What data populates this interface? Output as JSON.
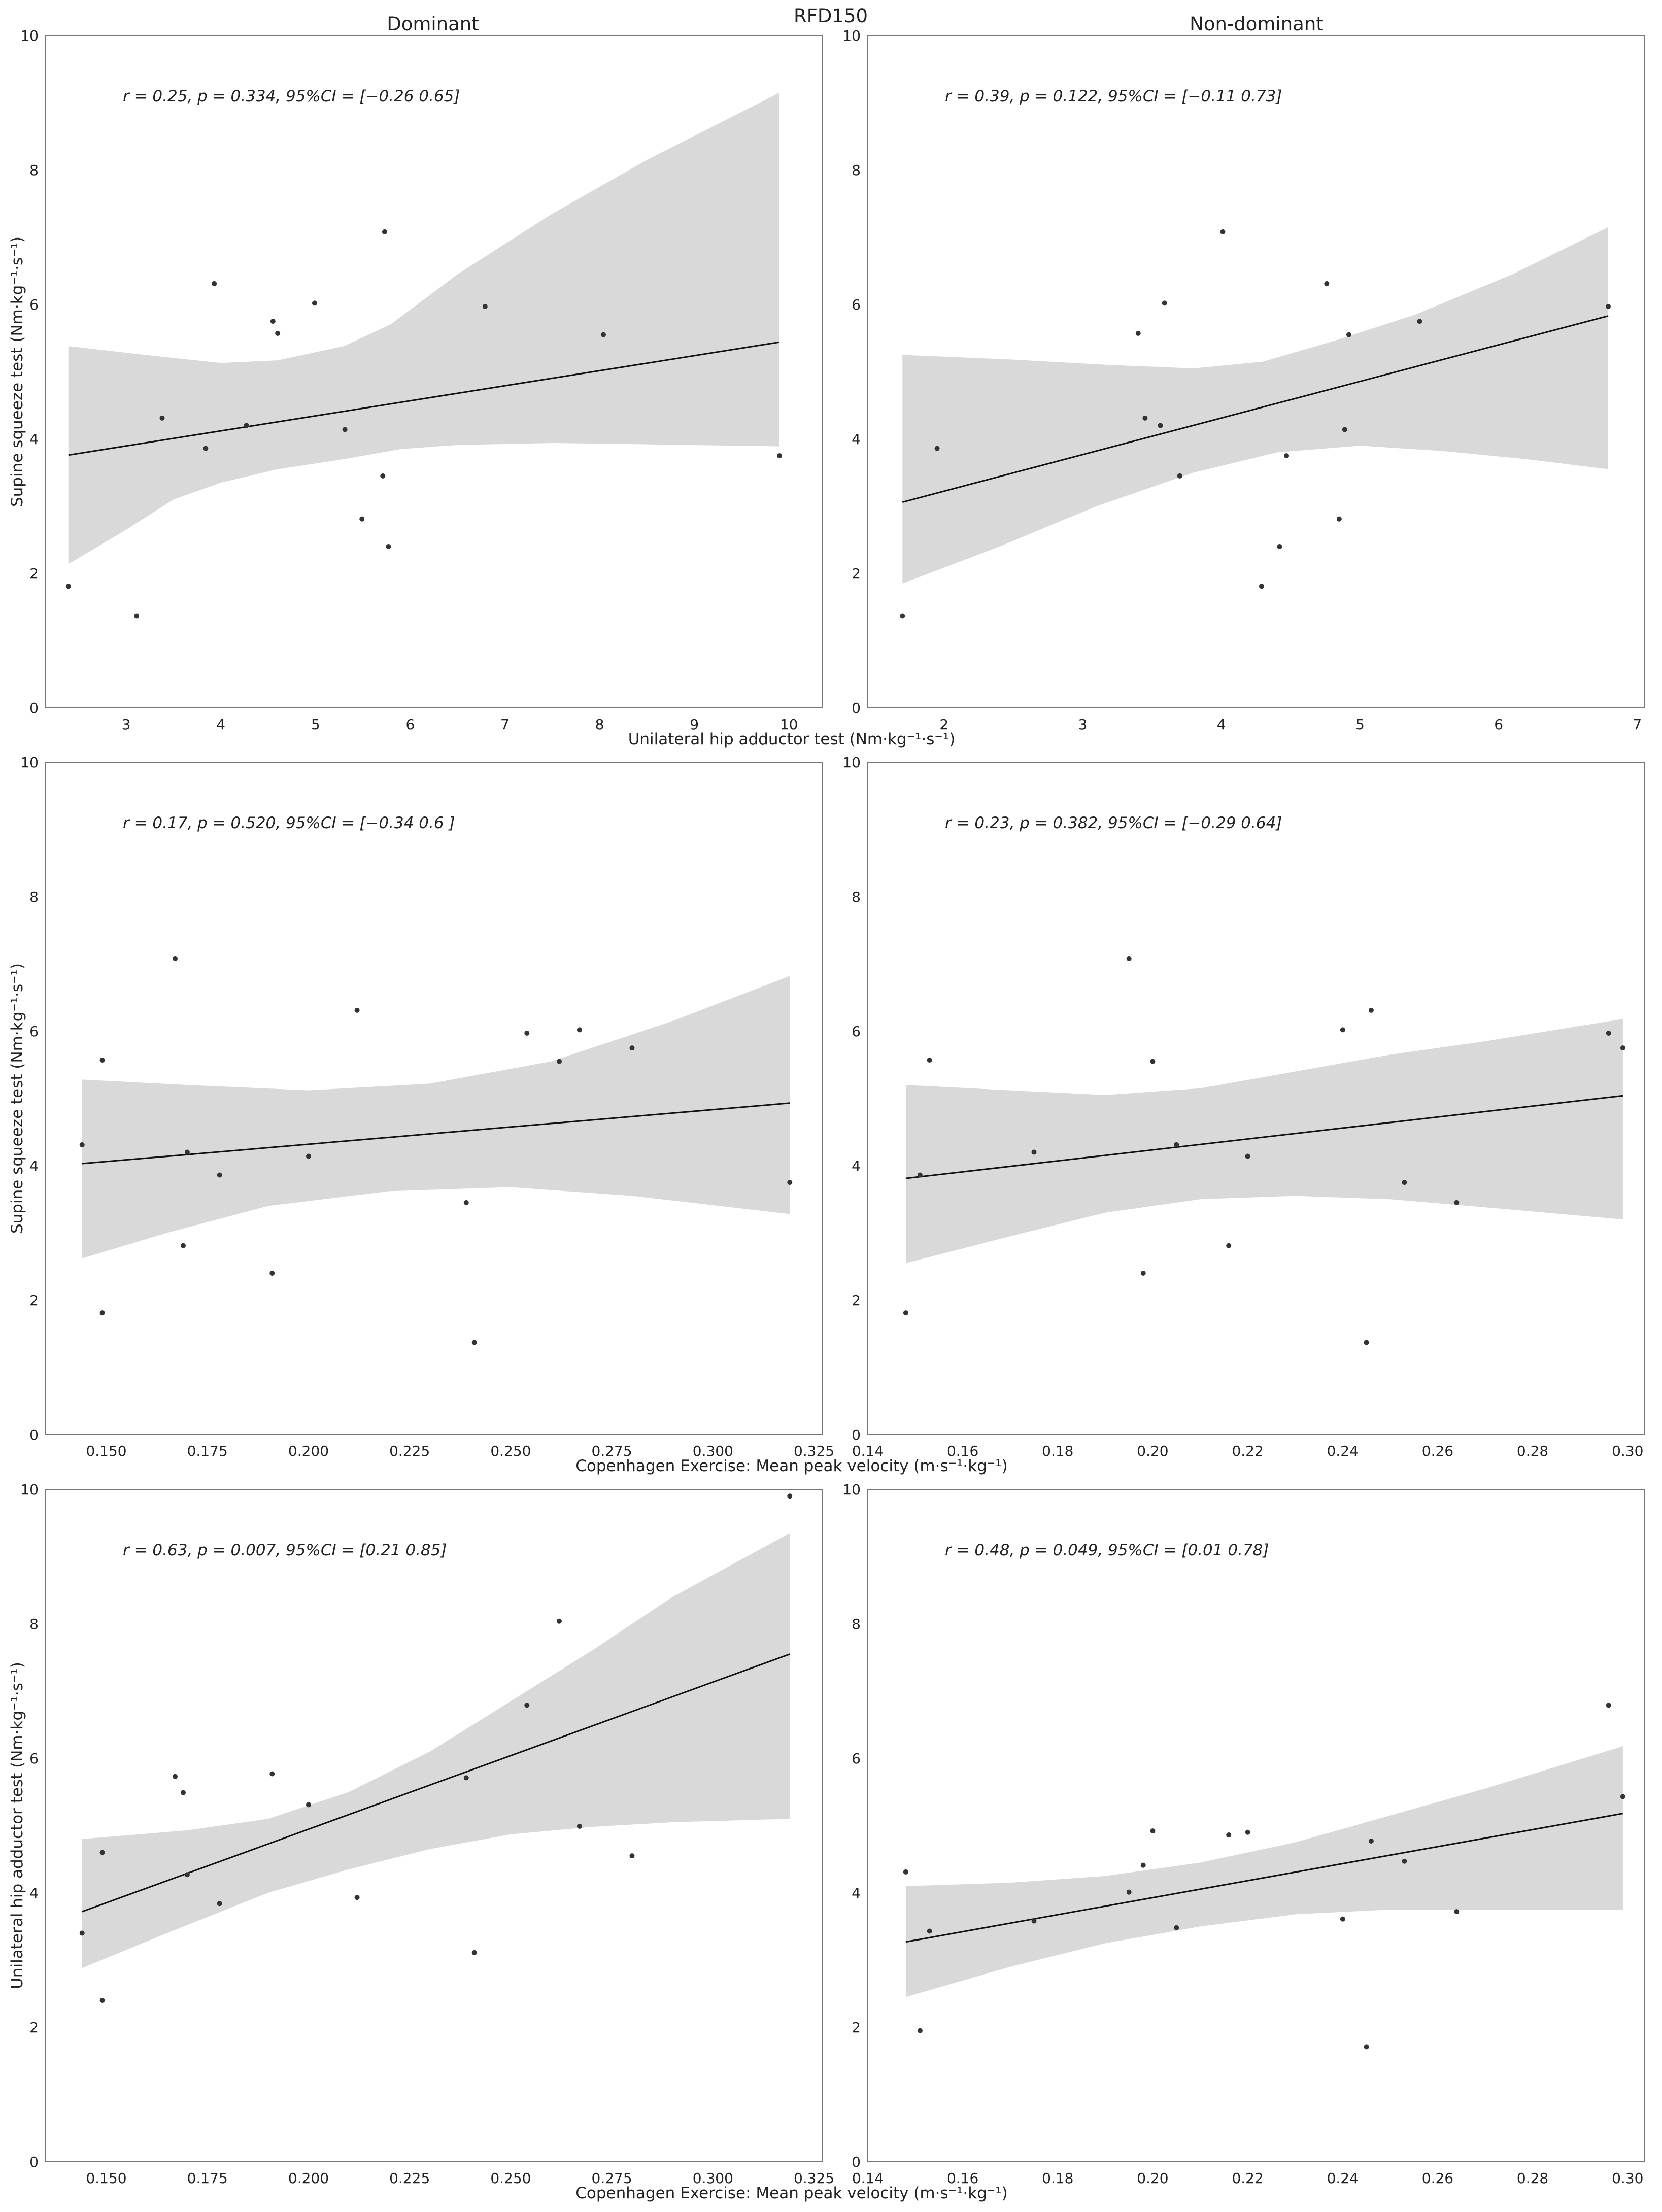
{
  "figure": {
    "suptitle": "RFD150",
    "col_titles": [
      "Dominant",
      "Non-dominant"
    ],
    "colors": {
      "band": "#d9d9d9",
      "line": "#111111",
      "point": "#333333",
      "frame": "#777777"
    }
  },
  "chart_data": [
    {
      "type": "scatter",
      "row": 0,
      "col": 0,
      "ylabel": "Supine squeeze test (Nm·kg⁻¹·s⁻¹)",
      "xlabel": "Unilateral hip adductor test (Nm·kg⁻¹·s⁻¹)",
      "annotation": "r = 0.25, p = 0.334, 95%CI = [−0.26  0.65]",
      "xlim": [
        2.15,
        10.35
      ],
      "ylim": [
        0,
        10
      ],
      "xticks": [
        3,
        4,
        5,
        6,
        7,
        8,
        9,
        10
      ],
      "xtick_labels": [
        "3",
        "4",
        "5",
        "6",
        "7",
        "8",
        "9",
        "10"
      ],
      "yticks": [
        0,
        2,
        4,
        6,
        8,
        10
      ],
      "ytick_labels": [
        "0",
        "2",
        "4",
        "6",
        "8",
        "10"
      ],
      "x": [
        2.39,
        3.11,
        3.38,
        3.84,
        3.93,
        4.27,
        4.55,
        4.6,
        4.99,
        5.31,
        5.49,
        5.71,
        5.73,
        5.77,
        6.79,
        8.04,
        9.9
      ],
      "y": [
        1.81,
        1.37,
        4.31,
        3.86,
        6.31,
        4.2,
        5.75,
        5.57,
        6.02,
        4.14,
        2.81,
        3.45,
        7.08,
        2.4,
        5.97,
        5.55,
        3.75
      ],
      "fit": [
        [
          2.39,
          3.76
        ],
        [
          9.9,
          5.44
        ]
      ],
      "ci_upper": [
        [
          2.39,
          5.38
        ],
        [
          3.2,
          5.25
        ],
        [
          4.0,
          5.13
        ],
        [
          4.6,
          5.17
        ],
        [
          5.3,
          5.38
        ],
        [
          5.8,
          5.71
        ],
        [
          6.5,
          6.45
        ],
        [
          7.5,
          7.35
        ],
        [
          8.5,
          8.15
        ],
        [
          9.9,
          9.15
        ]
      ],
      "ci_lower": [
        [
          2.39,
          2.14
        ],
        [
          3.0,
          2.65
        ],
        [
          3.5,
          3.1
        ],
        [
          4.0,
          3.35
        ],
        [
          4.6,
          3.55
        ],
        [
          5.3,
          3.7
        ],
        [
          5.9,
          3.85
        ],
        [
          6.5,
          3.91
        ],
        [
          7.5,
          3.94
        ],
        [
          8.5,
          3.92
        ],
        [
          9.9,
          3.89
        ]
      ]
    },
    {
      "type": "scatter",
      "row": 0,
      "col": 1,
      "ylabel": "",
      "xlabel": "",
      "annotation": "r = 0.39, p = 0.122, 95%CI = [−0.11  0.73]",
      "xlim": [
        1.45,
        7.05
      ],
      "ylim": [
        0,
        10
      ],
      "xticks": [
        2,
        3,
        4,
        5,
        6,
        7
      ],
      "xtick_labels": [
        "2",
        "3",
        "4",
        "5",
        "6",
        "7"
      ],
      "yticks": [
        0,
        2,
        4,
        6,
        8,
        10
      ],
      "ytick_labels": [
        "0",
        "2",
        "4",
        "6",
        "8",
        "10"
      ],
      "x": [
        1.7,
        1.95,
        3.4,
        3.45,
        3.56,
        3.59,
        3.7,
        4.01,
        4.29,
        4.42,
        4.47,
        4.76,
        4.85,
        4.89,
        4.92,
        5.43,
        6.79
      ],
      "y": [
        1.37,
        3.86,
        5.57,
        4.31,
        4.2,
        6.02,
        3.45,
        7.08,
        1.81,
        2.4,
        3.75,
        6.31,
        2.81,
        4.14,
        5.55,
        5.75,
        5.97
      ],
      "fit": [
        [
          1.7,
          3.06
        ],
        [
          6.79,
          5.83
        ]
      ],
      "ci_upper": [
        [
          1.7,
          5.25
        ],
        [
          2.5,
          5.18
        ],
        [
          3.2,
          5.1
        ],
        [
          3.8,
          5.05
        ],
        [
          4.3,
          5.15
        ],
        [
          4.8,
          5.45
        ],
        [
          5.4,
          5.85
        ],
        [
          6.1,
          6.45
        ],
        [
          6.79,
          7.15
        ]
      ],
      "ci_lower": [
        [
          1.7,
          1.85
        ],
        [
          2.4,
          2.4
        ],
        [
          3.1,
          3.0
        ],
        [
          3.8,
          3.5
        ],
        [
          4.4,
          3.8
        ],
        [
          5.0,
          3.9
        ],
        [
          5.6,
          3.82
        ],
        [
          6.2,
          3.7
        ],
        [
          6.79,
          3.55
        ]
      ]
    },
    {
      "type": "scatter",
      "row": 1,
      "col": 0,
      "ylabel": "Supine squeeze test (Nm·kg⁻¹·s⁻¹)",
      "xlabel": "Copenhagen Exercise: Mean peak velocity  (m·s⁻¹·kg⁻¹)",
      "annotation": "r = 0.17, p = 0.520, 95%CI = [−0.34  0.6 ]",
      "xlim": [
        0.135,
        0.327
      ],
      "ylim": [
        0,
        10
      ],
      "xticks": [
        0.15,
        0.175,
        0.2,
        0.225,
        0.25,
        0.275,
        0.3,
        0.325
      ],
      "xtick_labels": [
        "0.150",
        "0.175",
        "0.200",
        "0.225",
        "0.250",
        "0.275",
        "0.300",
        "0.325"
      ],
      "yticks": [
        0,
        2,
        4,
        6,
        8,
        10
      ],
      "ytick_labels": [
        "0",
        "2",
        "4",
        "6",
        "8",
        "10"
      ],
      "x": [
        0.144,
        0.149,
        0.149,
        0.167,
        0.169,
        0.17,
        0.178,
        0.191,
        0.2,
        0.212,
        0.239,
        0.241,
        0.254,
        0.262,
        0.267,
        0.28,
        0.319
      ],
      "y": [
        4.31,
        5.57,
        1.81,
        7.08,
        2.81,
        4.2,
        3.86,
        2.4,
        4.14,
        6.31,
        3.45,
        1.37,
        5.97,
        5.55,
        6.02,
        5.75,
        3.75
      ],
      "fit": [
        [
          0.144,
          4.03
        ],
        [
          0.319,
          4.93
        ]
      ],
      "ci_upper": [
        [
          0.144,
          5.28
        ],
        [
          0.17,
          5.2
        ],
        [
          0.2,
          5.12
        ],
        [
          0.23,
          5.22
        ],
        [
          0.26,
          5.55
        ],
        [
          0.29,
          6.15
        ],
        [
          0.319,
          6.82
        ]
      ],
      "ci_lower": [
        [
          0.144,
          2.62
        ],
        [
          0.165,
          3.0
        ],
        [
          0.19,
          3.4
        ],
        [
          0.22,
          3.62
        ],
        [
          0.25,
          3.68
        ],
        [
          0.28,
          3.55
        ],
        [
          0.319,
          3.28
        ]
      ]
    },
    {
      "type": "scatter",
      "row": 1,
      "col": 1,
      "ylabel": "",
      "xlabel": "",
      "annotation": "r = 0.23, p = 0.382, 95%CI = [−0.29  0.64]",
      "xlim": [
        0.14,
        0.3035
      ],
      "ylim": [
        0,
        10
      ],
      "xticks": [
        0.14,
        0.16,
        0.18,
        0.2,
        0.22,
        0.24,
        0.26,
        0.28,
        0.3
      ],
      "xtick_labels": [
        "0.14",
        "0.16",
        "0.18",
        "0.20",
        "0.22",
        "0.24",
        "0.26",
        "0.28",
        "0.30"
      ],
      "yticks": [
        0,
        2,
        4,
        6,
        8,
        10
      ],
      "ytick_labels": [
        "0",
        "2",
        "4",
        "6",
        "8",
        "10"
      ],
      "x": [
        0.148,
        0.151,
        0.153,
        0.175,
        0.195,
        0.198,
        0.2,
        0.205,
        0.216,
        0.22,
        0.24,
        0.245,
        0.246,
        0.253,
        0.264,
        0.296,
        0.299
      ],
      "y": [
        1.81,
        3.86,
        5.57,
        4.2,
        7.08,
        2.4,
        5.55,
        4.31,
        2.81,
        4.14,
        6.02,
        1.37,
        6.31,
        3.75,
        3.45,
        5.97,
        5.75
      ],
      "fit": [
        [
          0.148,
          3.81
        ],
        [
          0.299,
          5.04
        ]
      ],
      "ci_upper": [
        [
          0.148,
          5.2
        ],
        [
          0.17,
          5.12
        ],
        [
          0.19,
          5.05
        ],
        [
          0.21,
          5.15
        ],
        [
          0.23,
          5.4
        ],
        [
          0.25,
          5.65
        ],
        [
          0.27,
          5.85
        ],
        [
          0.299,
          6.18
        ]
      ],
      "ci_lower": [
        [
          0.148,
          2.55
        ],
        [
          0.17,
          2.95
        ],
        [
          0.19,
          3.3
        ],
        [
          0.21,
          3.5
        ],
        [
          0.23,
          3.55
        ],
        [
          0.25,
          3.5
        ],
        [
          0.27,
          3.38
        ],
        [
          0.299,
          3.2
        ]
      ]
    },
    {
      "type": "scatter",
      "row": 2,
      "col": 0,
      "ylabel": "Unilateral hip adductor test (Nm·kg⁻¹·s⁻¹)",
      "xlabel": "Copenhagen Exercise: Mean peak velocity (m·s⁻¹·kg⁻¹)",
      "annotation": "r = 0.63, p = 0.007, 95%CI = [0.21 0.85]",
      "xlim": [
        0.135,
        0.327
      ],
      "ylim": [
        0,
        10
      ],
      "xticks": [
        0.15,
        0.175,
        0.2,
        0.225,
        0.25,
        0.275,
        0.3,
        0.325
      ],
      "xtick_labels": [
        "0.150",
        "0.175",
        "0.200",
        "0.225",
        "0.250",
        "0.275",
        "0.300",
        "0.325"
      ],
      "yticks": [
        0,
        2,
        4,
        6,
        8,
        10
      ],
      "ytick_labels": [
        "0",
        "2",
        "4",
        "6",
        "8",
        "10"
      ],
      "x": [
        0.144,
        0.149,
        0.149,
        0.167,
        0.169,
        0.17,
        0.178,
        0.191,
        0.2,
        0.212,
        0.239,
        0.241,
        0.254,
        0.262,
        0.267,
        0.28,
        0.319
      ],
      "y": [
        3.4,
        2.4,
        4.6,
        5.73,
        5.49,
        4.27,
        3.84,
        5.77,
        5.31,
        3.93,
        5.71,
        3.11,
        6.79,
        8.04,
        4.99,
        4.55,
        9.9
      ],
      "fit": [
        [
          0.144,
          3.72
        ],
        [
          0.319,
          7.55
        ]
      ],
      "ci_upper": [
        [
          0.144,
          4.8
        ],
        [
          0.17,
          4.93
        ],
        [
          0.19,
          5.1
        ],
        [
          0.21,
          5.5
        ],
        [
          0.23,
          6.1
        ],
        [
          0.25,
          6.85
        ],
        [
          0.27,
          7.6
        ],
        [
          0.29,
          8.4
        ],
        [
          0.319,
          9.35
        ]
      ],
      "ci_lower": [
        [
          0.144,
          2.88
        ],
        [
          0.165,
          3.4
        ],
        [
          0.19,
          4.0
        ],
        [
          0.21,
          4.35
        ],
        [
          0.23,
          4.65
        ],
        [
          0.25,
          4.87
        ],
        [
          0.27,
          4.98
        ],
        [
          0.29,
          5.05
        ],
        [
          0.319,
          5.1
        ]
      ]
    },
    {
      "type": "scatter",
      "row": 2,
      "col": 1,
      "ylabel": "",
      "xlabel": "",
      "annotation": "r = 0.48, p = 0.049, 95%CI = [0.01 0.78]",
      "xlim": [
        0.14,
        0.3035
      ],
      "ylim": [
        0,
        10
      ],
      "xticks": [
        0.14,
        0.16,
        0.18,
        0.2,
        0.22,
        0.24,
        0.26,
        0.28,
        0.3
      ],
      "xtick_labels": [
        "0.14",
        "0.16",
        "0.18",
        "0.20",
        "0.22",
        "0.24",
        "0.26",
        "0.28",
        "0.30"
      ],
      "yticks": [
        0,
        2,
        4,
        6,
        8,
        10
      ],
      "ytick_labels": [
        "0",
        "2",
        "4",
        "6",
        "8",
        "10"
      ],
      "x": [
        0.148,
        0.151,
        0.153,
        0.175,
        0.195,
        0.198,
        0.2,
        0.205,
        0.216,
        0.22,
        0.24,
        0.245,
        0.246,
        0.253,
        0.264,
        0.296,
        0.299
      ],
      "y": [
        4.31,
        1.95,
        3.43,
        3.58,
        4.01,
        4.41,
        4.92,
        3.48,
        4.86,
        4.9,
        3.61,
        1.71,
        4.77,
        4.47,
        3.72,
        6.79,
        5.43
      ],
      "fit": [
        [
          0.148,
          3.27
        ],
        [
          0.299,
          5.18
        ]
      ],
      "ci_upper": [
        [
          0.148,
          4.1
        ],
        [
          0.17,
          4.15
        ],
        [
          0.19,
          4.25
        ],
        [
          0.21,
          4.45
        ],
        [
          0.23,
          4.75
        ],
        [
          0.25,
          5.15
        ],
        [
          0.27,
          5.55
        ],
        [
          0.299,
          6.18
        ]
      ],
      "ci_lower": [
        [
          0.148,
          2.45
        ],
        [
          0.17,
          2.9
        ],
        [
          0.19,
          3.25
        ],
        [
          0.21,
          3.5
        ],
        [
          0.23,
          3.68
        ],
        [
          0.25,
          3.75
        ],
        [
          0.27,
          3.75
        ],
        [
          0.299,
          3.75
        ]
      ]
    }
  ]
}
